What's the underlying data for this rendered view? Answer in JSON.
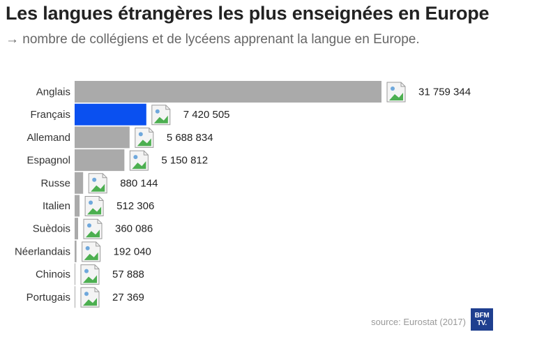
{
  "header": {
    "title": "Les langues étrangères les plus enseignées en Europe",
    "subtitle": "→ nombre de collégiens et de lycéens apprenant la langue en Europe."
  },
  "footer": {
    "source": "source: Eurostat (2017)",
    "logo_text": "BFM TV."
  },
  "colors": {
    "bar_default": "#aaaaaa",
    "bar_highlight": "#0a50f0"
  },
  "chart_data": {
    "type": "bar",
    "orientation": "horizontal",
    "categories": [
      "Anglais",
      "Français",
      "Allemand",
      "Espagnol",
      "Russe",
      "Italien",
      "Suèdois",
      "Néerlandais",
      "Chinois",
      "Portugais"
    ],
    "values": [
      31759344,
      7420505,
      5688834,
      5150812,
      880144,
      512306,
      360086,
      192040,
      57888,
      27369
    ],
    "value_labels": [
      "31 759 344",
      "7 420 505",
      "5 688 834",
      "5 150 812",
      "880 144",
      "512 306",
      "360 086",
      "192 040",
      "57 888",
      "27 369"
    ],
    "highlight": "Français",
    "icon": "broken-image-icon"
  }
}
